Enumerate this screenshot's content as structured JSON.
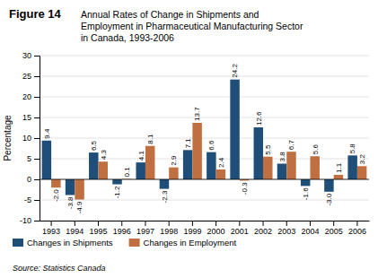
{
  "chart_data": {
    "type": "bar",
    "title": "Figure 14",
    "subtitle": "Annual Rates of Change in Shipments and\nEmployment in Pharmaceutical Manufacturing Sector\nin Canada, 1993-2006",
    "ylabel": "Percentage",
    "categories": [
      "1993",
      "1994",
      "1995",
      "1996",
      "1997",
      "1998",
      "1999",
      "2000",
      "2001",
      "2002",
      "2003",
      "2004",
      "2005",
      "2006"
    ],
    "series": [
      {
        "name": "Changes in Shipments",
        "color": "#1f4e79",
        "values": [
          9.4,
          -3.8,
          6.5,
          -1.2,
          4.1,
          -2.3,
          7.1,
          6.6,
          24.2,
          12.6,
          3.8,
          -1.6,
          -3.0,
          5.8
        ],
        "value_labels": [
          "9.4",
          "-3.8",
          "6.5",
          "-1.2",
          "4.1",
          "-2.3",
          "7.1",
          "6.6",
          "24.2",
          "12.6",
          "3.8",
          "-1.6",
          "-3.0",
          "5.8"
        ]
      },
      {
        "name": "Changes in Employment",
        "color": "#c07040",
        "values": [
          -2.0,
          -4.9,
          4.3,
          0.1,
          8.1,
          2.9,
          13.7,
          2.4,
          -0.3,
          5.5,
          6.7,
          5.6,
          1.1,
          3.2
        ],
        "value_labels": [
          "-2.0",
          "-4.9",
          "4.3",
          "0.1",
          "8.1",
          "2.9",
          "13.7",
          "2.4",
          "-0.3",
          "5.5",
          "6.7",
          "5.6",
          "1.1",
          "3.2"
        ]
      }
    ],
    "ylim": [
      -10,
      30
    ],
    "yticks": [
      -10,
      -5,
      0,
      5,
      10,
      15,
      20,
      25,
      30
    ],
    "grid": true,
    "legend": "bottom",
    "data_labels": true,
    "annotations": [
      "Source: Statistics Canada"
    ]
  }
}
